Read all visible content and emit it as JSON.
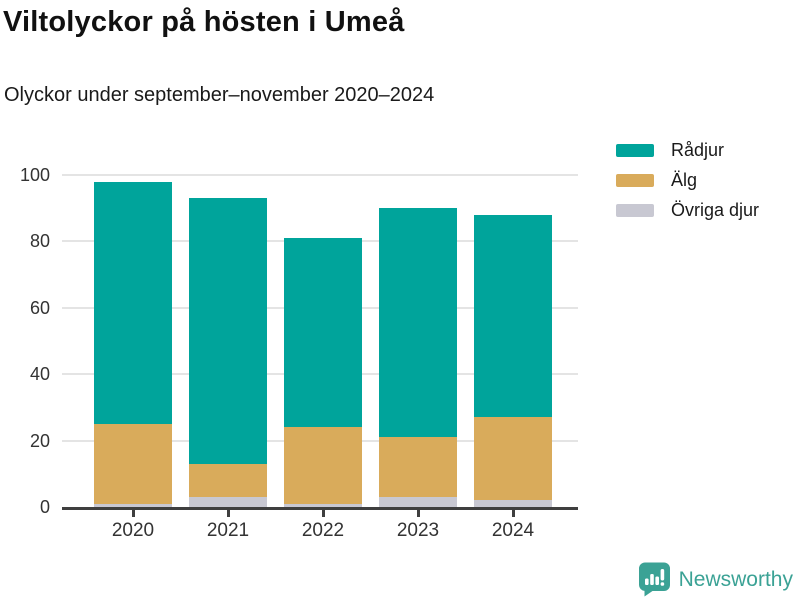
{
  "title": "Viltolyckor på hösten i Umeå",
  "subtitle": "Olyckor under september–november 2020–2024",
  "colors": {
    "radjur": "#00a49b",
    "alg": "#d9ab5b",
    "ovriga_djur": "#c8c8d2",
    "axis": "#3f3f3f",
    "gridline": "#e4e4e4",
    "brand": "#3ba295"
  },
  "chart_data": {
    "type": "bar",
    "stacked": true,
    "title": "Viltolyckor på hösten i Umeå",
    "subtitle": "Olyckor under september–november 2020–2024",
    "categories": [
      "2020",
      "2021",
      "2022",
      "2023",
      "2024"
    ],
    "series": [
      {
        "name": "Rådjur",
        "color": "#00a49b",
        "values": [
          73,
          80,
          57,
          69,
          61
        ]
      },
      {
        "name": "Älg",
        "color": "#d9ab5b",
        "values": [
          24,
          10,
          23,
          18,
          25
        ]
      },
      {
        "name": "Övriga djur",
        "color": "#c8c8d2",
        "values": [
          1,
          3,
          1,
          3,
          2
        ]
      }
    ],
    "totals": [
      98,
      93,
      81,
      90,
      88
    ],
    "xlabel": "",
    "ylabel": "",
    "ylim": [
      0,
      100
    ],
    "yticks": [
      0,
      20,
      40,
      60,
      80,
      100
    ],
    "grid": true,
    "legend_position": "top-right"
  },
  "footer": {
    "brand": "Newsworthy",
    "logo_icon": "bar-chart-speech-bubble-icon"
  }
}
